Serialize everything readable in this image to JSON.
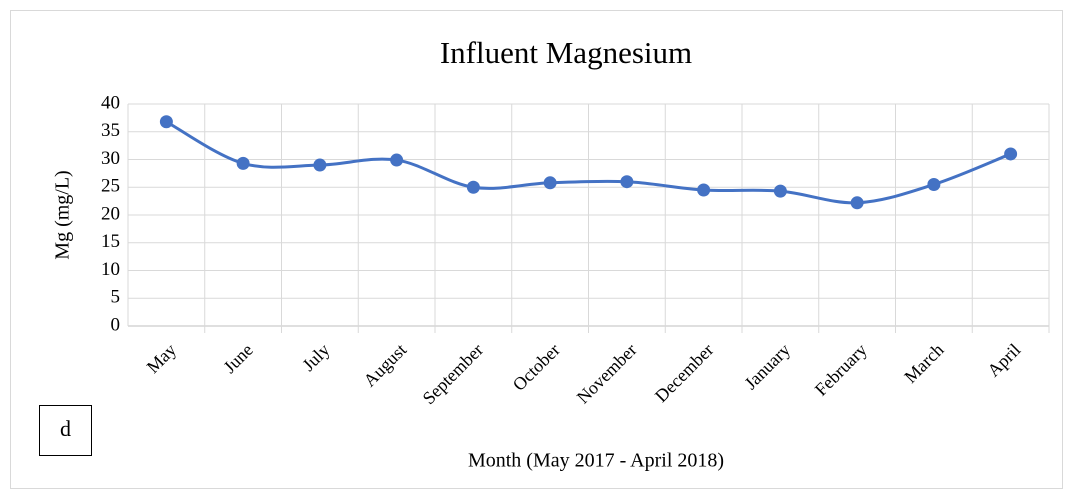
{
  "chart_data": {
    "type": "line",
    "title": "Influent Magnesium",
    "x_label": "Month (May 2017 - April 2018)",
    "y_label": "Mg (mg/L)",
    "annotation": "d",
    "categories": [
      "May",
      "June",
      "July",
      "August",
      "September",
      "October",
      "November",
      "December",
      "January",
      "February",
      "March",
      "April"
    ],
    "values": [
      36.8,
      29.3,
      29.0,
      29.9,
      25.0,
      25.8,
      26.0,
      24.5,
      24.3,
      22.2,
      25.5,
      31.0
    ],
    "color": "#4472c4",
    "smooth": true,
    "ylim": [
      0,
      40
    ],
    "yticks": [
      0,
      5,
      10,
      15,
      20,
      25,
      30,
      35,
      40
    ],
    "grid": true
  }
}
